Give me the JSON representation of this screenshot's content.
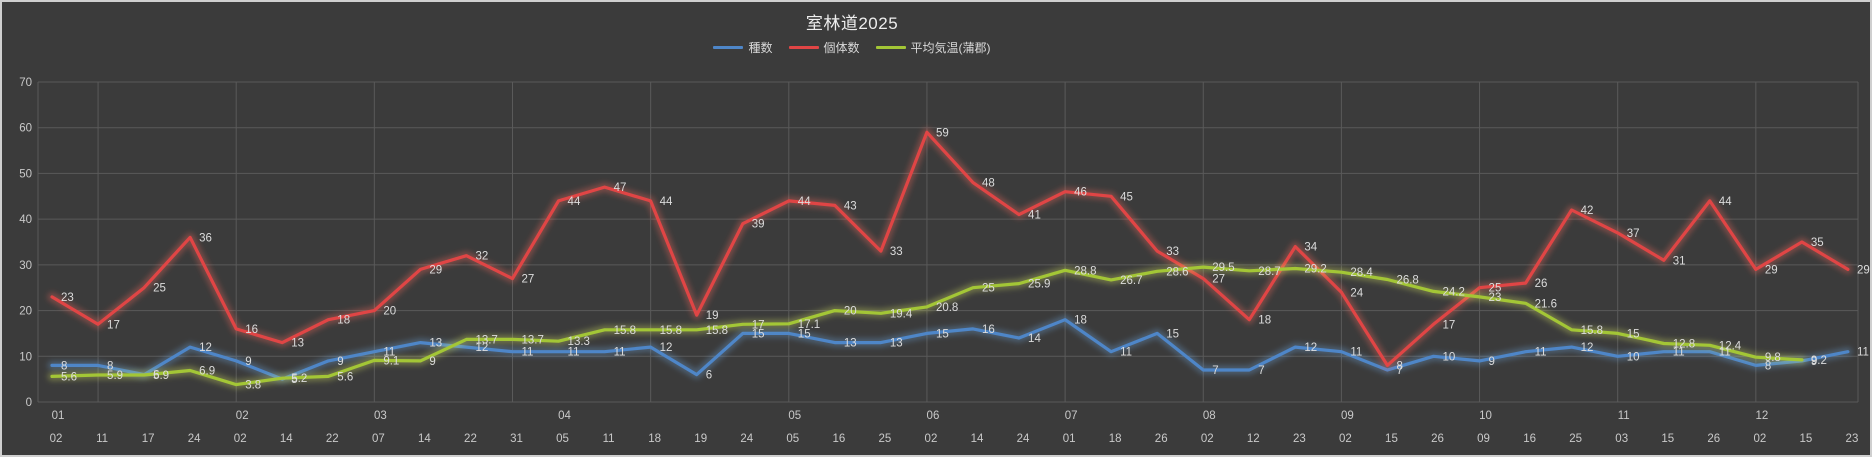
{
  "title": "室林道2025",
  "legend": {
    "items": [
      {
        "label": "種数",
        "color": "#4E86C8"
      },
      {
        "label": "個体数",
        "color": "#E04545"
      },
      {
        "label": "平均気温(蒲郡)",
        "color": "#A3C636"
      }
    ]
  },
  "colors": {
    "background": "#3B3B3B",
    "grid": "#5A5A5A",
    "axis_text": "#C9C9C9",
    "label_text": "#DCDCDC",
    "title_text": "#EDEDED",
    "frame": "#CFCFCF"
  },
  "chart_data": {
    "type": "line",
    "title": "室林道2025",
    "ylim": [
      0,
      70
    ],
    "yticks": [
      0,
      10,
      20,
      30,
      40,
      50,
      60,
      70
    ],
    "grid": true,
    "legend_position": "top",
    "x_labels": {
      "days": [
        "02",
        "11",
        "17",
        "24",
        "02",
        "14",
        "22",
        "07",
        "14",
        "22",
        "31",
        "05",
        "11",
        "18",
        "19",
        "24",
        "05",
        "16",
        "25",
        "02",
        "14",
        "24",
        "01",
        "18",
        "26",
        "02",
        "12",
        "23",
        "02",
        "15",
        "26",
        "09",
        "16",
        "25",
        "03",
        "15",
        "26",
        "02",
        "15",
        "23"
      ],
      "months": [
        {
          "index": 0,
          "label": "01"
        },
        {
          "index": 4,
          "label": "02"
        },
        {
          "index": 7,
          "label": "03"
        },
        {
          "index": 11,
          "label": "04"
        },
        {
          "index": 16,
          "label": "05"
        },
        {
          "index": 19,
          "label": "06"
        },
        {
          "index": 22,
          "label": "07"
        },
        {
          "index": 25,
          "label": "08"
        },
        {
          "index": 28,
          "label": "09"
        },
        {
          "index": 31,
          "label": "10"
        },
        {
          "index": 34,
          "label": "11"
        },
        {
          "index": 37,
          "label": "12"
        }
      ]
    },
    "series": [
      {
        "name": "種数",
        "color": "#4E86C8",
        "glow": "#6FA9E0",
        "values": [
          8,
          8,
          6,
          12,
          9,
          5,
          9,
          11,
          13,
          12,
          11,
          11,
          11,
          12,
          6,
          15,
          15,
          13,
          13,
          15,
          16,
          14,
          18,
          11,
          15,
          7,
          7,
          12,
          11,
          7,
          10,
          9,
          11,
          12,
          10,
          11,
          11,
          8,
          9,
          11
        ]
      },
      {
        "name": "個体数",
        "color": "#E04545",
        "glow": "#FF6B5E",
        "values": [
          23,
          17,
          25,
          36,
          16,
          13,
          18,
          20,
          29,
          32,
          27,
          44,
          47,
          44,
          19,
          39,
          44,
          43,
          33,
          59,
          48,
          41,
          46,
          45,
          33,
          27,
          18,
          34,
          24,
          8,
          17,
          25,
          26,
          42,
          37,
          31,
          44,
          29,
          35,
          29
        ]
      },
      {
        "name": "平均気温(蒲郡)",
        "color": "#A3C636",
        "glow": "#D9E55F",
        "values": [
          5.6,
          5.9,
          5.9,
          6.9,
          3.8,
          5.2,
          5.6,
          9.1,
          9,
          13.7,
          13.7,
          13.3,
          15.8,
          15.8,
          15.8,
          17,
          17.1,
          20,
          19.4,
          20.8,
          25,
          25.9,
          28.8,
          26.7,
          28.6,
          29.5,
          28.7,
          29.2,
          28.4,
          26.8,
          24.2,
          23,
          21.6,
          15.8,
          15,
          12.8,
          12.4,
          9.8,
          9.2,
          null
        ]
      }
    ]
  }
}
